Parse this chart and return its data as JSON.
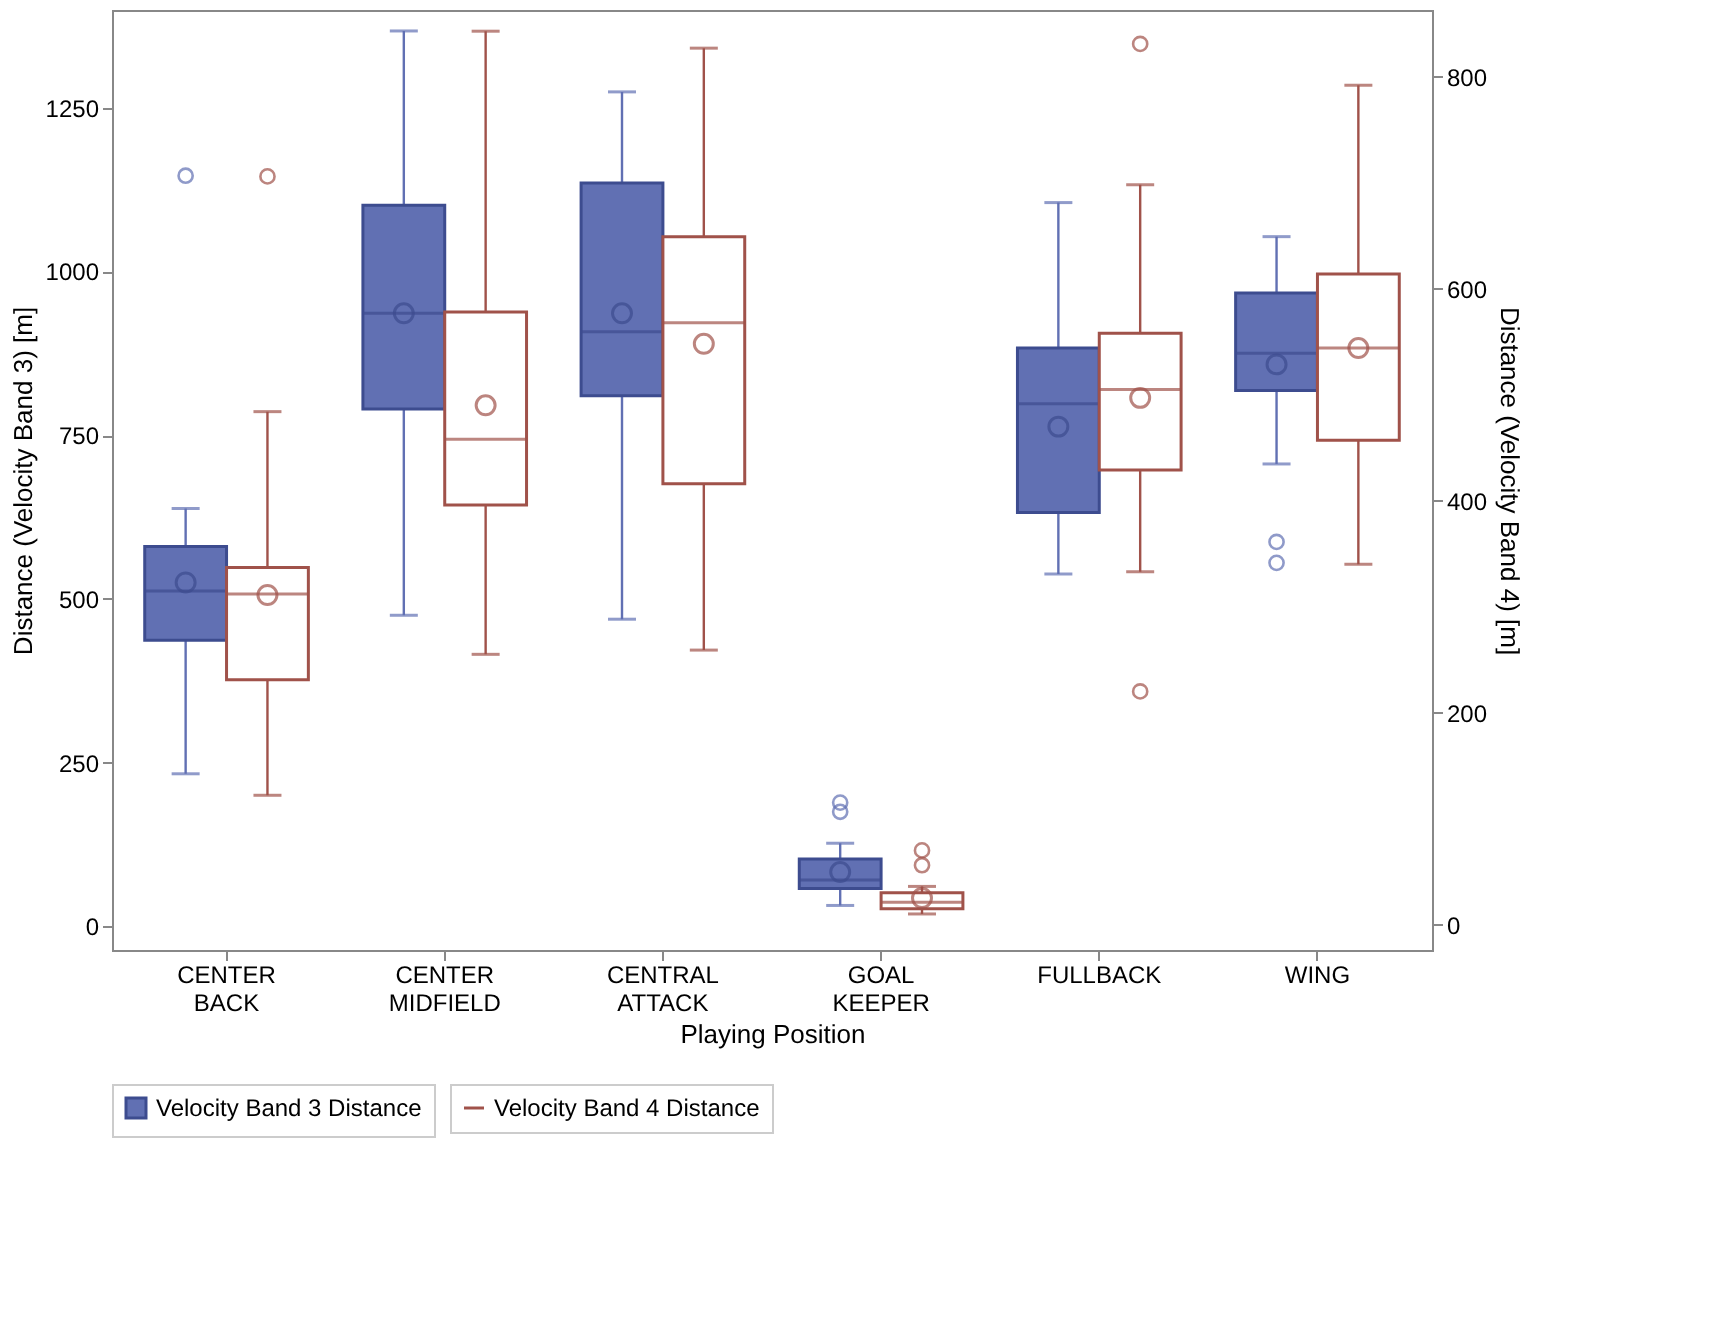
{
  "chart_data": {
    "type": "box",
    "xlabel": "Playing Position",
    "ylabel": "Distance (Velocity Band 3) [m]",
    "y2label": "Distance (Velocity Band 4) [m]",
    "categories": [
      "CENTER BACK",
      "CENTER MIDFIELD",
      "CENTRAL ATTACK",
      "GOAL KEEPER",
      "FULLBACK",
      "WING"
    ],
    "ylim": [
      -36,
      1399
    ],
    "yticks": [
      0,
      250,
      500,
      750,
      1000,
      1250
    ],
    "y2lim": [
      -24,
      863
    ],
    "y2ticks": [
      0,
      200,
      400,
      600,
      800
    ],
    "grid": false,
    "legend": "bottom",
    "series": [
      {
        "name": "Velocity Band 3 Distance",
        "color": "#6170b3",
        "boxes": [
          {
            "low": 233,
            "q1": 437,
            "median": 512,
            "q3": 580,
            "high": 638,
            "mean": 525,
            "outliers": [
              1146
            ]
          },
          {
            "low": 475,
            "q1": 790,
            "median": 936,
            "q3": 1101,
            "high": 1367,
            "mean": 936
          },
          {
            "low": 469,
            "q1": 810,
            "median": 908,
            "q3": 1135,
            "high": 1274,
            "mean": 936
          },
          {
            "low": 32,
            "q1": 58,
            "median": 71,
            "q3": 103,
            "high": 127,
            "mean": 83,
            "outliers": [
              175,
              189
            ]
          },
          {
            "low": 538,
            "q1": 632,
            "median": 798,
            "q3": 883,
            "high": 1105,
            "mean": 763
          },
          {
            "low": 706,
            "q1": 818,
            "median": 875,
            "q3": 967,
            "high": 1053,
            "mean": 858,
            "outliers": [
              555,
              587
            ]
          }
        ]
      },
      {
        "name": "Velocity Band 4 Distance",
        "color": "#a0524a",
        "axis": "y2",
        "boxes": [
          {
            "low": 122,
            "q1": 231,
            "median": 312,
            "q3": 337,
            "high": 484,
            "mean": 311,
            "outliers": [
              706
            ]
          },
          {
            "low": 255,
            "q1": 396,
            "median": 458,
            "q3": 578,
            "high": 843,
            "mean": 490
          },
          {
            "low": 259,
            "q1": 416,
            "median": 568,
            "q3": 649,
            "high": 827,
            "mean": 548
          },
          {
            "low": 10,
            "q1": 15,
            "median": 21,
            "q3": 30,
            "high": 36,
            "mean": 25,
            "outliers": [
              56,
              70
            ]
          },
          {
            "low": 333,
            "q1": 429,
            "median": 505,
            "q3": 558,
            "high": 698,
            "mean": 497,
            "outliers": [
              220,
              831
            ]
          },
          {
            "low": 340,
            "q1": 457,
            "median": 544,
            "q3": 614,
            "high": 792,
            "mean": 544
          }
        ]
      }
    ]
  }
}
